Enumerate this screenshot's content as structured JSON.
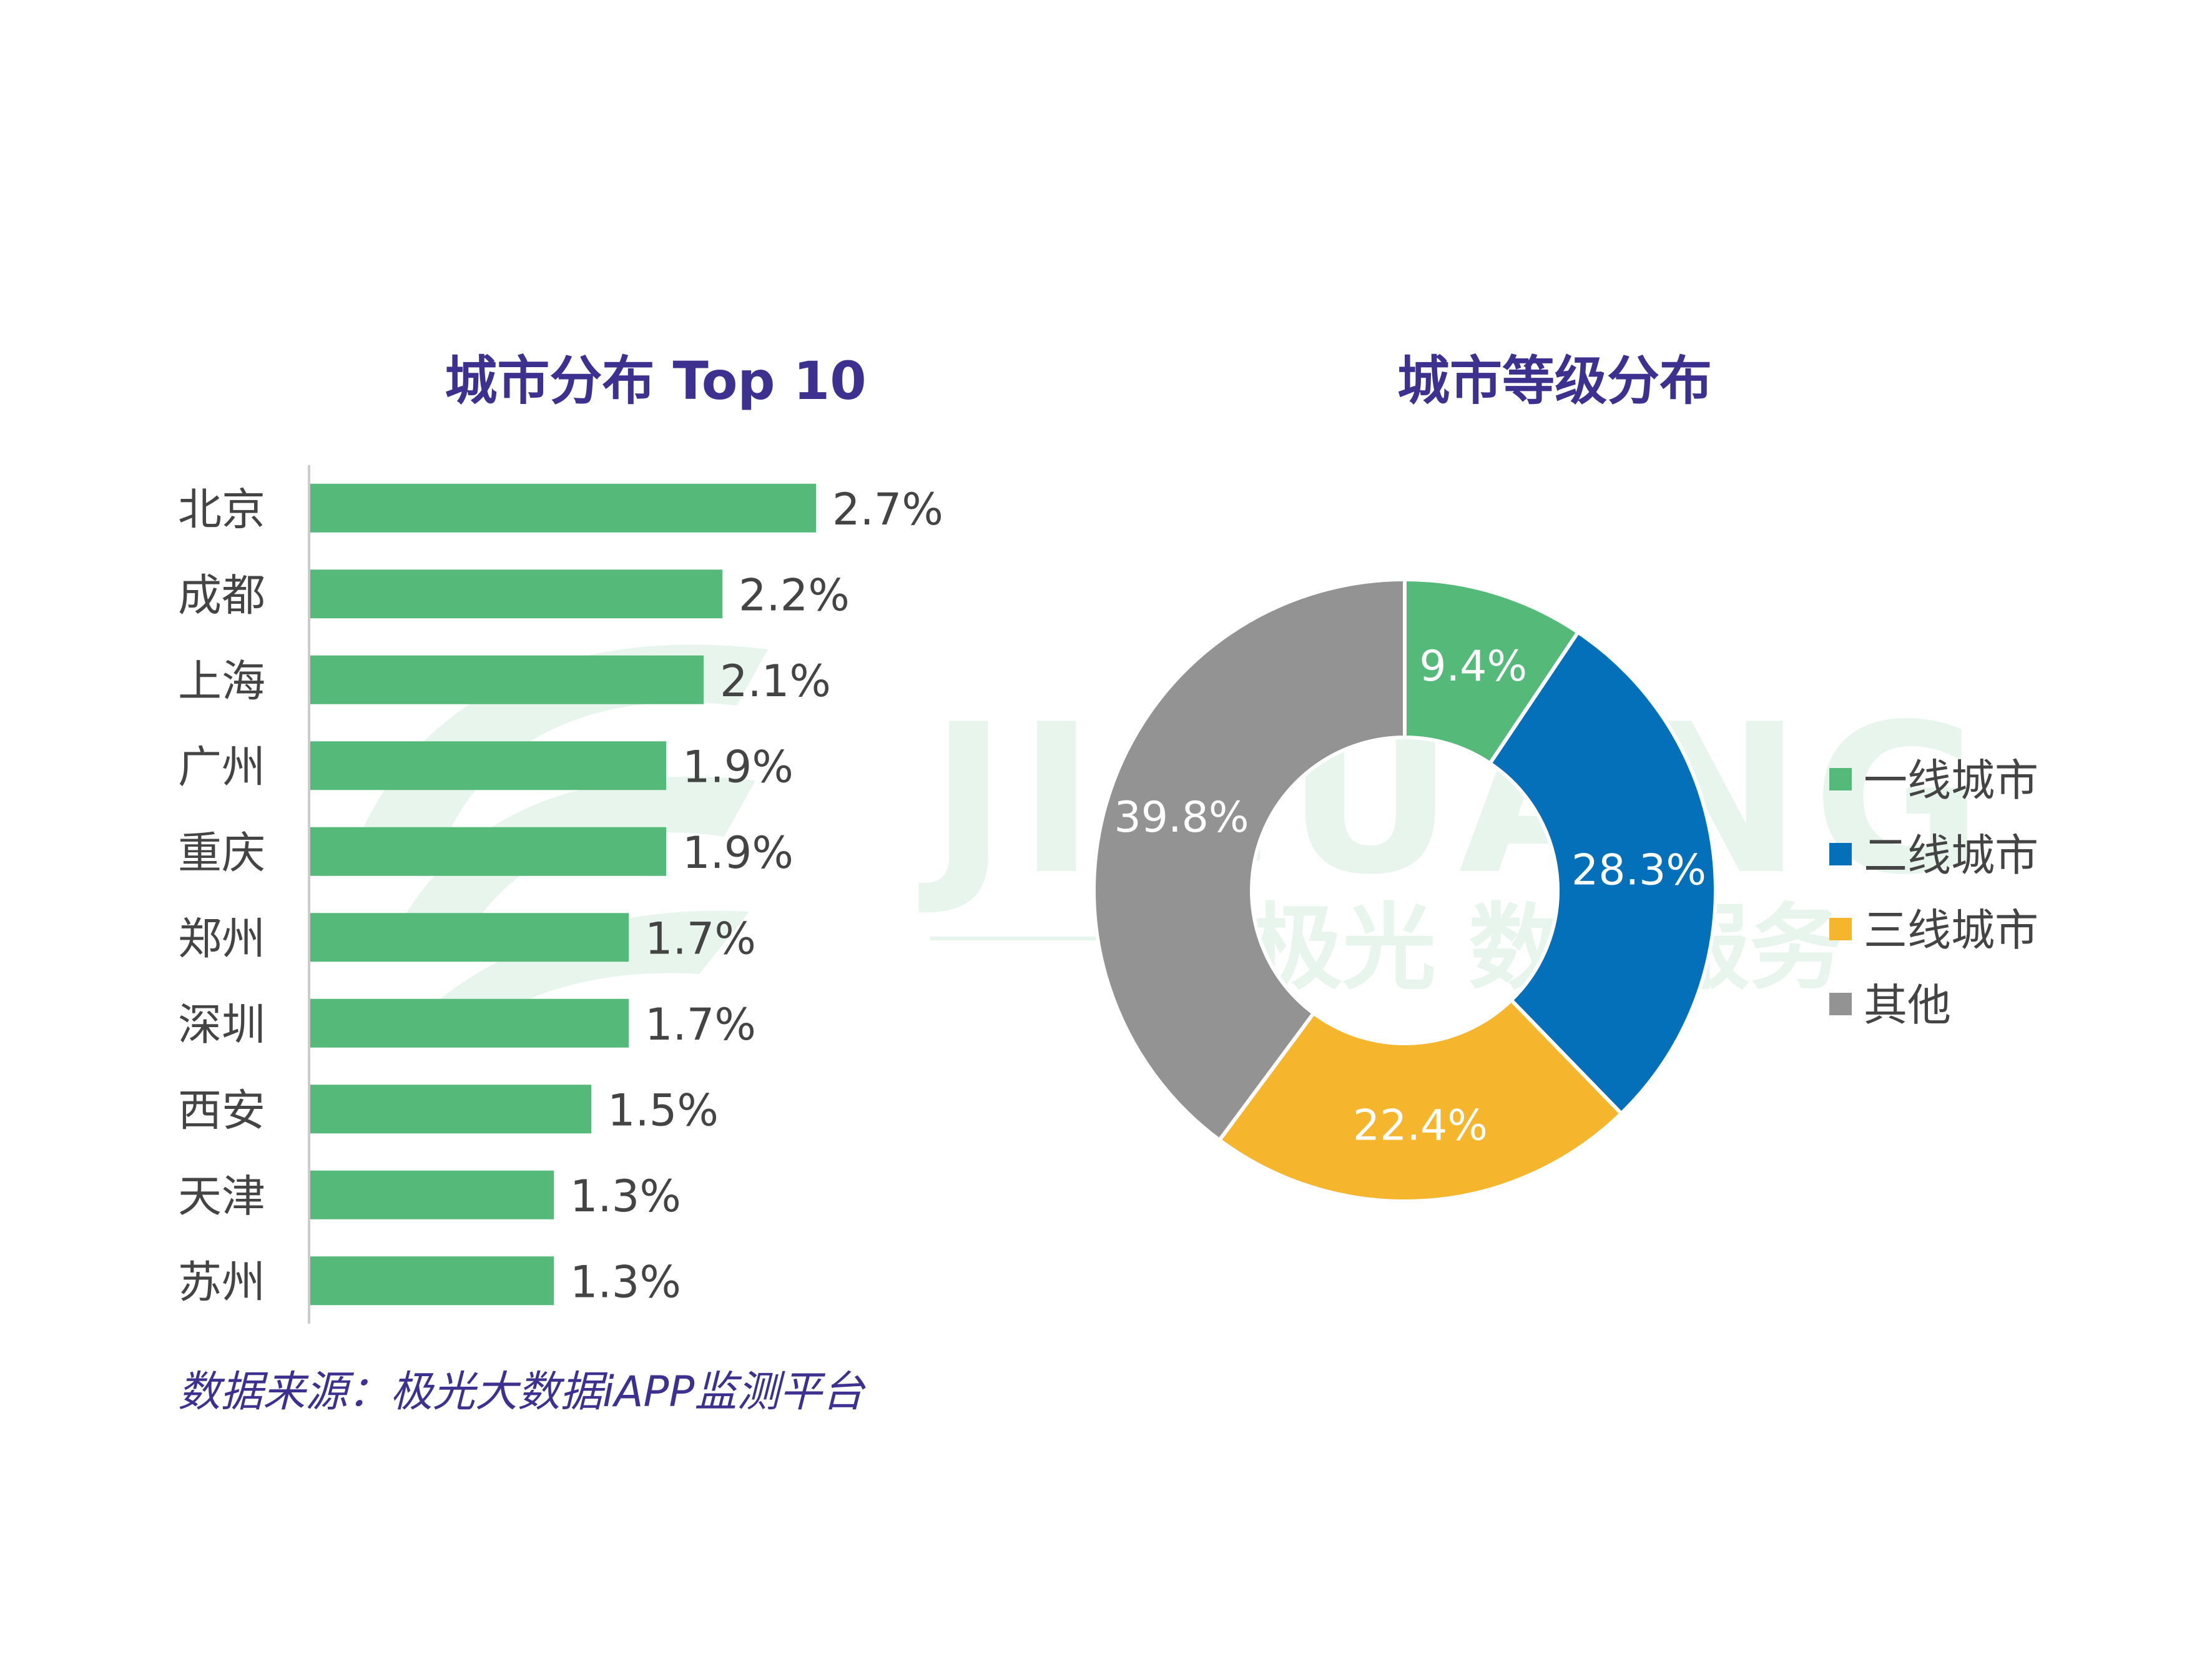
{
  "colors": {
    "title": "#3d3190",
    "bar": "#55b97a",
    "axis": "#cccccc",
    "label": "#444444",
    "donut_label": "#ffffff",
    "watermark": "#e8f5ec"
  },
  "watermark": {
    "logo_text": "JIGUANG",
    "sub_text": "极光 数据服务"
  },
  "source": "数据来源：极光大数据iAPP监测平台",
  "chart_data": [
    {
      "type": "bar",
      "orientation": "horizontal",
      "title": "城市分布 Top 10",
      "categories": [
        "北京",
        "成都",
        "上海",
        "广州",
        "重庆",
        "郑州",
        "深圳",
        "西安",
        "天津",
        "苏州"
      ],
      "values": [
        2.7,
        2.2,
        2.1,
        1.9,
        1.9,
        1.7,
        1.7,
        1.5,
        1.3,
        1.3
      ],
      "labels": [
        "2.7%",
        "2.2%",
        "2.1%",
        "1.9%",
        "1.9%",
        "1.7%",
        "1.7%",
        "1.5%",
        "1.3%",
        "1.3%"
      ],
      "unit": "%",
      "xlim": [
        0,
        3.0
      ],
      "grid": false
    },
    {
      "type": "pie",
      "variant": "donut",
      "title": "城市等级分布",
      "legend_position": "right",
      "slices": [
        {
          "name": "一线城市",
          "value": 9.4,
          "label": "9.4%",
          "color": "#55b97a"
        },
        {
          "name": "二线城市",
          "value": 28.3,
          "label": "28.3%",
          "color": "#0470b9"
        },
        {
          "name": "三线城市",
          "value": 22.4,
          "label": "22.4%",
          "color": "#f5b52d"
        },
        {
          "name": "其他",
          "value": 39.8,
          "label": "39.8%",
          "color": "#939393"
        }
      ]
    }
  ]
}
